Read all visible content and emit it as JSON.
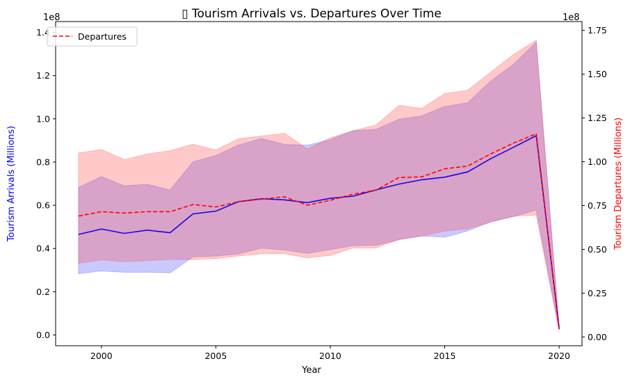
{
  "chart_data": {
    "type": "line",
    "title": "▯ Tourism Arrivals vs. Departures Over Time",
    "xlabel": "Year",
    "ylabel_left": "Tourism Arrivals (Millions)",
    "ylabel_right": "Tourism Departures (Millions)",
    "left_offset_label": "1e8",
    "right_offset_label": "1e8",
    "xlim": [
      1998,
      2021
    ],
    "ylim_left": [
      -0.05,
      1.45
    ],
    "ylim_right": [
      -0.05,
      1.8
    ],
    "x_ticks": [
      2000,
      2005,
      2010,
      2015,
      2020
    ],
    "x_tick_labels": [
      "2000",
      "2005",
      "2010",
      "2015",
      "2020"
    ],
    "left_ticks": [
      0.0,
      0.2,
      0.4,
      0.6,
      0.8,
      1.0,
      1.2,
      1.4
    ],
    "left_tick_labels": [
      "0.0",
      "0.2",
      "0.4",
      "0.6",
      "0.8",
      "1.0",
      "1.2",
      "1.4"
    ],
    "right_ticks": [
      0.0,
      0.25,
      0.5,
      0.75,
      1.0,
      1.25,
      1.5,
      1.75
    ],
    "right_tick_labels": [
      "0.00",
      "0.25",
      "0.50",
      "0.75",
      "1.00",
      "1.25",
      "1.50",
      "1.75"
    ],
    "grid": false,
    "legend": {
      "position": "top-left",
      "entries": [
        "Departures"
      ]
    },
    "colors": {
      "arrivals_line": "#1f00e0",
      "arrivals_band": "#4d4dff",
      "departures_line": "#ff0000",
      "departures_band": "#ff4d4d",
      "axis": "#000000",
      "left_label": "#0000ff",
      "right_label": "#ff0000"
    },
    "x": [
      1999,
      2000,
      2001,
      2002,
      2003,
      2004,
      2005,
      2006,
      2007,
      2008,
      2009,
      2010,
      2011,
      2012,
      2013,
      2014,
      2015,
      2016,
      2017,
      2018,
      2019,
      2020
    ],
    "series": [
      {
        "axis": "left",
        "style": "solid",
        "values": [
          0.465,
          0.49,
          0.47,
          0.485,
          0.473,
          0.56,
          0.573,
          0.617,
          0.63,
          0.625,
          0.612,
          0.632,
          0.642,
          0.671,
          0.698,
          0.718,
          0.73,
          0.754,
          0.815,
          0.868,
          0.922,
          0.03
        ],
        "band_upper": [
          0.682,
          0.733,
          0.69,
          0.697,
          0.671,
          0.801,
          0.83,
          0.879,
          0.909,
          0.882,
          0.878,
          0.903,
          0.946,
          0.951,
          0.998,
          1.014,
          1.057,
          1.074,
          1.174,
          1.252,
          1.355,
          0.035
        ],
        "band_lower": [
          0.283,
          0.296,
          0.29,
          0.29,
          0.287,
          0.361,
          0.365,
          0.375,
          0.402,
          0.393,
          0.377,
          0.395,
          0.413,
          0.415,
          0.441,
          0.458,
          0.452,
          0.481,
          0.522,
          0.547,
          0.578,
          0.025
        ]
      },
      {
        "name": "Departures",
        "axis": "right",
        "style": "dashed",
        "values": [
          0.69,
          0.715,
          0.707,
          0.715,
          0.715,
          0.756,
          0.742,
          0.772,
          0.787,
          0.8,
          0.752,
          0.78,
          0.815,
          0.838,
          0.91,
          0.914,
          0.96,
          0.975,
          1.044,
          1.106,
          1.16,
          0.045
        ],
        "band_upper": [
          1.05,
          1.07,
          1.012,
          1.044,
          1.063,
          1.1,
          1.067,
          1.132,
          1.147,
          1.162,
          1.074,
          1.137,
          1.177,
          1.21,
          1.322,
          1.305,
          1.389,
          1.408,
          1.51,
          1.612,
          1.694,
          0.06
        ],
        "band_lower": [
          0.42,
          0.44,
          0.43,
          0.435,
          0.443,
          0.442,
          0.447,
          0.462,
          0.475,
          0.475,
          0.451,
          0.465,
          0.508,
          0.508,
          0.556,
          0.576,
          0.604,
          0.617,
          0.656,
          0.69,
          0.695,
          0.03
        ]
      }
    ]
  }
}
